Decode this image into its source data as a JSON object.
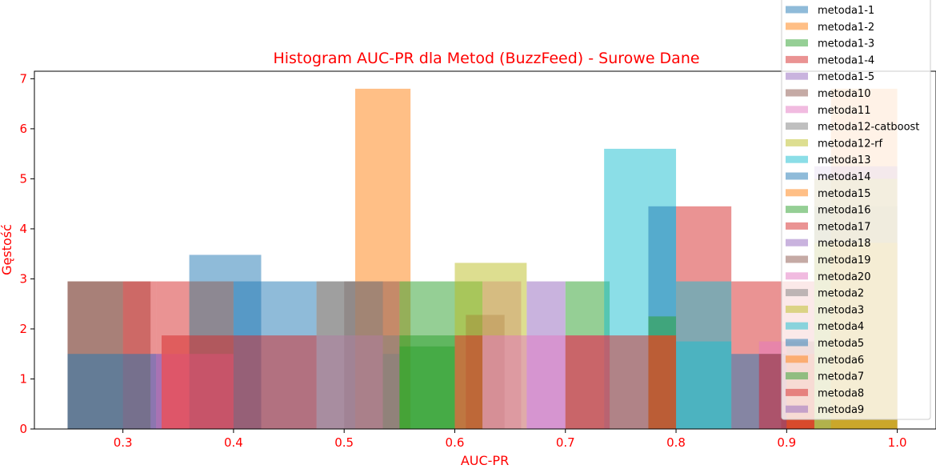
{
  "chart_data": {
    "type": "bar",
    "title": "Histogram AUC-PR dla Metod (BuzzFeed) - Surowe Dane",
    "xlabel": "AUC-PR",
    "ylabel": "Gęstość",
    "xlim": [
      0.22,
      1.035
    ],
    "ylim": [
      0,
      7.15
    ],
    "xticks": [
      0.3,
      0.4,
      0.5,
      0.6,
      0.7,
      0.8,
      0.9,
      1.0
    ],
    "xtick_labels": [
      "0.3",
      "0.4",
      "0.5",
      "0.6",
      "0.7",
      "0.8",
      "0.9",
      "1.0"
    ],
    "yticks": [
      0,
      1,
      2,
      3,
      4,
      5,
      6,
      7
    ],
    "ytick_labels": [
      "0",
      "1",
      "2",
      "3",
      "4",
      "5",
      "6",
      "7"
    ],
    "grid": false,
    "legend_position": "top-right",
    "label_color": "#ff0000",
    "bar_opacity": 0.5,
    "series": [
      {
        "name": "metoda1-1",
        "color": "#1f77b4",
        "bins": [
          [
            0.36,
            0.425,
            3.48
          ],
          [
            0.925,
            1.0,
            4.45
          ]
        ]
      },
      {
        "name": "metoda1-2",
        "color": "#ff7f0e",
        "bins": [
          [
            0.51,
            0.56,
            6.8
          ],
          [
            0.94,
            1.0,
            6.8
          ]
        ]
      },
      {
        "name": "metoda1-3",
        "color": "#2ca02c",
        "bins": [
          [
            0.55,
            0.6,
            2.95
          ],
          [
            0.6,
            0.625,
            2.95
          ],
          [
            0.7,
            0.74,
            2.95
          ]
        ]
      },
      {
        "name": "metoda1-4",
        "color": "#d62728",
        "bins": [
          [
            0.33,
            0.36,
            2.95
          ],
          [
            0.8,
            0.85,
            4.45
          ],
          [
            0.85,
            0.925,
            2.95
          ]
        ]
      },
      {
        "name": "metoda1-5",
        "color": "#9467bd",
        "bins": [
          [
            0.665,
            0.7,
            2.95
          ],
          [
            0.925,
            1.0,
            5.25
          ]
        ]
      },
      {
        "name": "metoda10",
        "color": "#8c564b",
        "bins": [
          [
            0.25,
            0.325,
            2.95
          ],
          [
            0.36,
            0.4,
            2.95
          ],
          [
            0.5,
            0.55,
            2.95
          ],
          [
            0.61,
            0.645,
            2.28
          ]
        ]
      },
      {
        "name": "metoda11",
        "color": "#e377c2",
        "bins": [
          [
            0.625,
            0.66,
            2.95
          ],
          [
            0.875,
            0.9,
            1.75
          ]
        ]
      },
      {
        "name": "metoda12-catboost",
        "color": "#7f7f7f",
        "bins": [
          [
            0.475,
            0.51,
            2.95
          ],
          [
            0.535,
            0.55,
            1.5
          ]
        ]
      },
      {
        "name": "metoda12-rf",
        "color": "#bcbd22",
        "bins": [
          [
            0.6,
            0.665,
            3.32
          ],
          [
            0.925,
            1.0,
            5.0
          ]
        ]
      },
      {
        "name": "metoda13",
        "color": "#17becf",
        "bins": [
          [
            0.735,
            0.775,
            5.6
          ],
          [
            0.775,
            0.8,
            5.6
          ],
          [
            0.8,
            0.85,
            2.95
          ]
        ]
      },
      {
        "name": "metoda14",
        "color": "#1f77b4",
        "bins": [
          [
            0.4,
            0.475,
            2.95
          ],
          [
            0.775,
            0.8,
            4.45
          ]
        ]
      },
      {
        "name": "metoda15",
        "color": "#ff7f0e",
        "bins": [
          [
            0.94,
            1.0,
            3.72
          ]
        ]
      },
      {
        "name": "metoda16",
        "color": "#2ca02c",
        "bins": [
          [
            0.55,
            0.6,
            1.65
          ],
          [
            0.775,
            0.8,
            2.25
          ]
        ]
      },
      {
        "name": "metoda17",
        "color": "#d62728",
        "bins": [
          [
            0.3,
            0.33,
            2.95
          ],
          [
            0.895,
            0.925,
            1.75
          ]
        ]
      },
      {
        "name": "metoda18",
        "color": "#9467bd",
        "bins": [
          [
            0.33,
            0.335,
            1.5
          ]
        ]
      },
      {
        "name": "metoda19",
        "color": "#8c564b",
        "bins": [
          [
            0.25,
            0.3,
            2.95
          ],
          [
            0.9,
            0.925,
            1.75
          ]
        ]
      },
      {
        "name": "metoda20",
        "color": "#e377c2",
        "bins": [
          [
            0.335,
            0.4,
            1.5
          ],
          [
            0.475,
            0.535,
            1.87
          ],
          [
            0.625,
            0.74,
            1.87
          ]
        ]
      },
      {
        "name": "metoda2",
        "color": "#7f7f7f",
        "bins": [
          [
            0.475,
            0.535,
            2.95
          ],
          [
            0.535,
            0.55,
            1.87
          ]
        ]
      },
      {
        "name": "metoda3",
        "color": "#bcbd22",
        "bins": [
          [
            0.925,
            1.0,
            3.72
          ]
        ]
      },
      {
        "name": "metoda4",
        "color": "#17becf",
        "bins": [
          [
            0.8,
            0.85,
            1.75
          ]
        ]
      },
      {
        "name": "metoda5",
        "color": "#1f77b4",
        "bins": [
          [
            0.25,
            0.33,
            1.5
          ],
          [
            0.85,
            0.9,
            1.5
          ]
        ]
      },
      {
        "name": "metoda6",
        "color": "#ff7f0e",
        "bins": [
          [
            0.775,
            0.8,
            1.87
          ],
          [
            0.9,
            0.925,
            1.5
          ]
        ]
      },
      {
        "name": "metoda7",
        "color": "#2ca02c",
        "bins": [
          [
            0.55,
            0.6,
            1.87
          ]
        ]
      },
      {
        "name": "metoda8",
        "color": "#d62728",
        "bins": [
          [
            0.335,
            0.475,
            1.87
          ],
          [
            0.6,
            0.625,
            1.87
          ],
          [
            0.7,
            0.775,
            1.87
          ],
          [
            0.775,
            0.8,
            1.87
          ],
          [
            0.875,
            0.925,
            1.5
          ]
        ]
      },
      {
        "name": "metoda9",
        "color": "#9467bd",
        "bins": [
          [
            0.325,
            0.335,
            1.5
          ]
        ]
      }
    ]
  }
}
